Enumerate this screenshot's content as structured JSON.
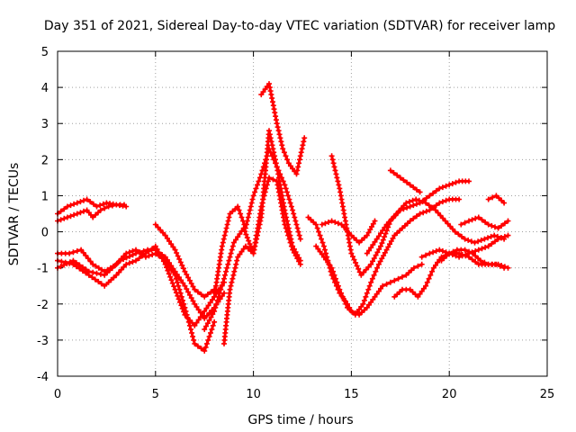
{
  "chart_data": {
    "type": "scatter",
    "title": "Day 351 of 2021, Sidereal Day-to-day VTEC variation (SDTVAR) for receiver lamp",
    "xlabel": "GPS time / hours",
    "ylabel": "SDTVAR / TECUs",
    "xlim": [
      0,
      25
    ],
    "ylim": [
      -4,
      5
    ],
    "xticks": [
      "0",
      "5",
      "10",
      "15",
      "20",
      "25"
    ],
    "yticks": [
      "-4",
      "-3",
      "-2",
      "-1",
      "0",
      "1",
      "2",
      "3",
      "4",
      "5"
    ],
    "grid": true,
    "marker": "+",
    "color": "#ff0000",
    "series": [
      {
        "x": [
          0.0,
          0.5,
          1.0,
          1.5,
          1.8,
          2.2,
          2.6,
          3.0,
          3.4
        ],
        "y": [
          0.3,
          0.4,
          0.5,
          0.6,
          0.4,
          0.6,
          0.7,
          0.75,
          0.75
        ]
      },
      {
        "x": [
          0.0,
          0.5,
          1.0,
          1.5,
          2.0,
          2.5,
          3.0,
          3.5
        ],
        "y": [
          0.5,
          0.7,
          0.8,
          0.9,
          0.7,
          0.8,
          0.75,
          0.7
        ]
      },
      {
        "x": [
          0.0,
          0.6,
          1.2,
          1.8,
          2.4,
          3.0,
          3.5,
          4.0,
          4.5,
          5.0,
          5.5,
          6.0,
          6.5,
          7.0,
          7.5,
          8.0
        ],
        "y": [
          -0.6,
          -0.6,
          -0.5,
          -0.9,
          -1.1,
          -0.9,
          -0.6,
          -0.5,
          -0.7,
          -0.6,
          -0.8,
          -1.2,
          -2.1,
          -3.1,
          -3.3,
          -2.5
        ]
      },
      {
        "x": [
          0.0,
          0.8,
          1.6,
          2.4,
          3.2,
          4.0,
          4.6,
          5.0,
          5.5,
          6.0,
          6.5,
          7.0,
          7.5,
          8.0,
          8.5
        ],
        "y": [
          -1.0,
          -0.8,
          -1.1,
          -1.2,
          -0.8,
          -0.6,
          -0.5,
          -0.5,
          -0.7,
          -1.1,
          -1.5,
          -2.0,
          -2.4,
          -2.1,
          -1.7
        ]
      },
      {
        "x": [
          0.0,
          0.8,
          1.6,
          2.4,
          2.6,
          3.0,
          3.5,
          4.0,
          4.5,
          5.0,
          5.5,
          6.0,
          6.5,
          7.0,
          7.5,
          8.0,
          8.5
        ],
        "y": [
          -0.8,
          -0.9,
          -1.2,
          -1.5,
          -1.4,
          -1.2,
          -0.9,
          -0.8,
          -0.6,
          -0.4,
          -0.9,
          -1.6,
          -2.3,
          -2.6,
          -2.2,
          -1.8,
          -1.4
        ]
      },
      {
        "x": [
          5.0,
          5.5,
          6.0,
          6.5,
          7.0,
          7.5,
          8.0
        ],
        "y": [
          0.2,
          -0.1,
          -0.5,
          -1.1,
          -1.6,
          -1.8,
          -1.6
        ]
      },
      {
        "x": [
          7.5,
          8.0,
          8.5,
          9.0,
          9.5,
          10.0,
          10.4,
          10.8,
          11.2,
          11.6,
          12.0,
          12.4
        ],
        "y": [
          -2.7,
          -2.2,
          -1.3,
          -0.3,
          0.1,
          -0.6,
          0.7,
          1.5,
          1.4,
          0.2,
          -0.5,
          -0.9
        ]
      },
      {
        "x": [
          8.0,
          8.4,
          8.8,
          9.2,
          9.6,
          10.0,
          10.4,
          10.8,
          11.2,
          11.6,
          12.0,
          12.4
        ],
        "y": [
          -1.8,
          -0.4,
          0.5,
          0.7,
          0.1,
          1.0,
          1.6,
          2.3,
          1.8,
          1.3,
          0.6,
          -0.2
        ]
      },
      {
        "x": [
          8.5,
          8.8,
          9.2,
          9.6,
          10.0,
          10.4,
          10.8,
          11.2,
          11.6,
          12.0,
          12.4
        ],
        "y": [
          -3.1,
          -1.6,
          -0.7,
          -0.4,
          -0.6,
          0.4,
          2.8,
          1.8,
          0.6,
          -0.4,
          -0.8
        ]
      },
      {
        "x": [
          10.4,
          10.8,
          11.2,
          11.5,
          11.8,
          12.2,
          12.6
        ],
        "y": [
          3.8,
          4.1,
          3.0,
          2.3,
          1.9,
          1.6,
          2.6
        ]
      },
      {
        "x": [
          12.8,
          13.2,
          13.6,
          14.0,
          14.4,
          14.8,
          15.0,
          15.4,
          15.8,
          16.2,
          16.6,
          17.0,
          17.4,
          17.8,
          18.2,
          18.6
        ],
        "y": [
          0.4,
          0.2,
          -0.4,
          -1.2,
          -1.7,
          -2.0,
          -2.2,
          -2.3,
          -2.1,
          -1.8,
          -1.5,
          -1.4,
          -1.3,
          -1.2,
          -1.0,
          -0.9
        ]
      },
      {
        "x": [
          13.2,
          13.6,
          14.0,
          14.4,
          14.8,
          15.2,
          15.6,
          16.0,
          16.4,
          16.8,
          17.2,
          17.6,
          18.0,
          18.5,
          19.0,
          19.5,
          20.0,
          20.5
        ],
        "y": [
          -0.4,
          -0.7,
          -1.0,
          -1.6,
          -2.1,
          -2.3,
          -2.0,
          -1.4,
          -0.9,
          -0.5,
          -0.1,
          0.1,
          0.3,
          0.5,
          0.6,
          0.8,
          0.9,
          0.9
        ]
      },
      {
        "x": [
          14.0,
          14.4,
          14.8,
          15.0,
          15.5,
          16.0,
          16.5,
          17.0,
          17.5,
          18.0,
          18.5,
          19.0,
          19.5,
          20.0,
          20.5,
          21.0
        ],
        "y": [
          2.1,
          1.2,
          0.0,
          -0.6,
          -1.2,
          -0.9,
          -0.4,
          0.3,
          0.6,
          0.7,
          0.8,
          1.0,
          1.2,
          1.3,
          1.4,
          1.4
        ]
      },
      {
        "x": [
          13.5,
          14.0,
          14.5,
          15.0,
          15.4,
          15.8,
          16.2
        ],
        "y": [
          0.2,
          0.3,
          0.2,
          -0.1,
          -0.3,
          -0.1,
          0.3
        ]
      },
      {
        "x": [
          15.8,
          16.3,
          16.8,
          17.3,
          17.8,
          18.3,
          18.8,
          19.3,
          19.8,
          20.3,
          20.8,
          21.3,
          21.8,
          22.3,
          22.8
        ],
        "y": [
          -0.6,
          -0.2,
          0.2,
          0.5,
          0.8,
          0.9,
          0.8,
          0.6,
          0.3,
          0.0,
          -0.2,
          -0.3,
          -0.2,
          -0.1,
          -0.2
        ]
      },
      {
        "x": [
          17.0,
          17.5,
          18.0,
          18.5
        ],
        "y": [
          1.7,
          1.5,
          1.3,
          1.1
        ]
      },
      {
        "x": [
          17.2,
          17.6,
          18.0,
          18.4,
          18.8,
          19.2,
          19.6,
          20.0,
          20.4,
          20.8,
          21.2,
          21.6,
          22.0,
          22.4,
          22.8
        ],
        "y": [
          -1.8,
          -1.6,
          -1.6,
          -1.8,
          -1.5,
          -1.0,
          -0.7,
          -0.6,
          -0.5,
          -0.5,
          -0.6,
          -0.8,
          -0.9,
          -0.9,
          -1.0
        ]
      },
      {
        "x": [
          18.6,
          19.0,
          19.5,
          20.0,
          20.5,
          21.0,
          21.5,
          22.0,
          22.5,
          23.0
        ],
        "y": [
          -0.7,
          -0.6,
          -0.5,
          -0.6,
          -0.7,
          -0.6,
          -0.5,
          -0.4,
          -0.2,
          -0.1
        ]
      },
      {
        "x": [
          19.6,
          20.0,
          20.5,
          21.0,
          21.5,
          22.0,
          22.5,
          23.0
        ],
        "y": [
          -0.8,
          -0.6,
          -0.6,
          -0.7,
          -0.9,
          -0.9,
          -0.9,
          -1.0
        ]
      },
      {
        "x": [
          20.6,
          21.0,
          21.5,
          22.0,
          22.5,
          23.0
        ],
        "y": [
          0.2,
          0.3,
          0.4,
          0.2,
          0.1,
          0.3
        ]
      },
      {
        "x": [
          22.0,
          22.4,
          22.8
        ],
        "y": [
          0.9,
          1.0,
          0.8
        ]
      }
    ]
  }
}
